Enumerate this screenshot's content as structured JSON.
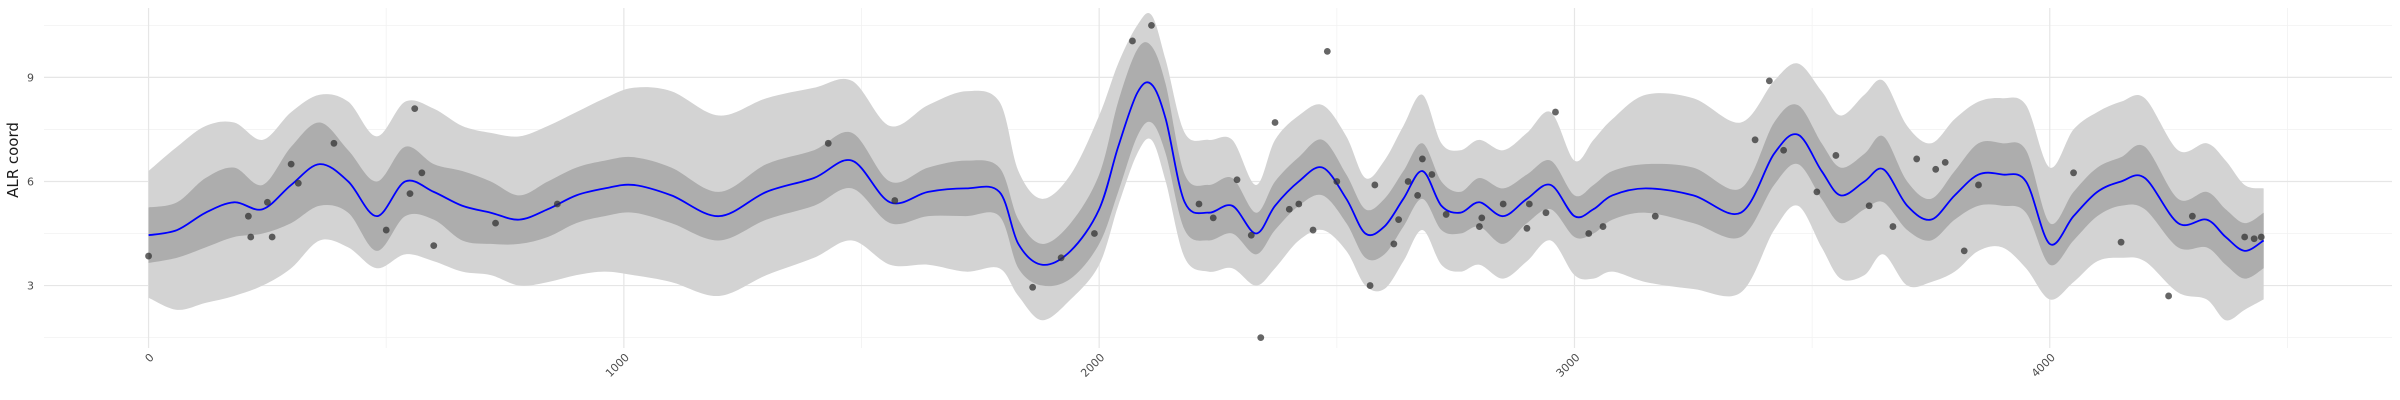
{
  "chart_data": {
    "type": "line",
    "title": "",
    "xlabel": "",
    "ylabel": "ALR coord",
    "xlim": [
      -220,
      4720
    ],
    "ylim": [
      1.2,
      11.0
    ],
    "x_ticks": [
      0,
      1000,
      2000,
      3000,
      4000
    ],
    "x_tick_labels": [
      "0",
      "1000",
      "2000",
      "3000",
      "4000"
    ],
    "x_minor_ticks": [
      500,
      1500,
      2500,
      3500,
      4500
    ],
    "y_ticks": [
      3,
      6,
      9
    ],
    "y_tick_labels": [
      "3",
      "6",
      "9"
    ],
    "y_minor_ticks": [
      1.5,
      4.5,
      7.5,
      10.5
    ],
    "grid": true,
    "legend": "none",
    "colors": {
      "fit_line": "#0000ff",
      "inner_band": "#adadad",
      "outer_band": "#d3d3d3",
      "points": "#333333",
      "background": "#ffffff"
    },
    "series": [
      {
        "type": "line",
        "x": [
          0,
          60,
          120,
          180,
          240,
          300,
          360,
          420,
          480,
          540,
          600,
          660,
          720,
          780,
          840,
          900,
          960,
          1020,
          1100,
          1200,
          1300,
          1400,
          1480,
          1560,
          1640,
          1720,
          1790,
          1830,
          1880,
          1940,
          2000,
          2040,
          2080,
          2110,
          2140,
          2180,
          2230,
          2280,
          2330,
          2370,
          2420,
          2470,
          2520,
          2560,
          2600,
          2640,
          2680,
          2720,
          2760,
          2800,
          2850,
          2900,
          2950,
          3000,
          3040,
          3080,
          3150,
          3250,
          3350,
          3420,
          3470,
          3520,
          3560,
          3610,
          3650,
          3700,
          3750,
          3800,
          3850,
          3900,
          3950,
          4000,
          4050,
          4100,
          4150,
          4200,
          4270,
          4330,
          4370,
          4410,
          4450
        ],
        "y": [
          4.45,
          4.6,
          5.1,
          5.4,
          5.2,
          5.9,
          6.5,
          6.0,
          5.0,
          6.0,
          5.7,
          5.3,
          5.1,
          4.9,
          5.2,
          5.6,
          5.8,
          5.9,
          5.6,
          5.0,
          5.7,
          6.1,
          6.6,
          5.4,
          5.7,
          5.8,
          5.7,
          4.2,
          3.6,
          4.0,
          5.2,
          7.0,
          8.55,
          8.8,
          7.8,
          5.4,
          5.1,
          5.3,
          4.5,
          5.3,
          6.0,
          6.4,
          5.5,
          4.5,
          4.7,
          5.5,
          6.3,
          5.3,
          5.1,
          5.4,
          5.0,
          5.5,
          5.9,
          5.0,
          5.2,
          5.6,
          5.8,
          5.6,
          5.1,
          6.8,
          7.35,
          6.3,
          5.6,
          6.0,
          6.35,
          5.3,
          4.9,
          5.6,
          6.2,
          6.2,
          6.0,
          4.2,
          5.0,
          5.7,
          6.0,
          6.1,
          4.8,
          4.9,
          4.4,
          4.0,
          4.3
        ]
      },
      {
        "type": "band",
        "x": [
          0,
          60,
          120,
          180,
          240,
          300,
          360,
          420,
          480,
          540,
          600,
          660,
          720,
          780,
          840,
          900,
          960,
          1020,
          1100,
          1200,
          1300,
          1400,
          1480,
          1560,
          1640,
          1720,
          1790,
          1830,
          1880,
          1940,
          2000,
          2040,
          2080,
          2110,
          2140,
          2180,
          2230,
          2280,
          2330,
          2370,
          2420,
          2470,
          2520,
          2560,
          2600,
          2640,
          2680,
          2720,
          2760,
          2800,
          2850,
          2900,
          2950,
          3000,
          3040,
          3080,
          3150,
          3250,
          3350,
          3420,
          3470,
          3520,
          3560,
          3610,
          3650,
          3700,
          3750,
          3800,
          3850,
          3900,
          3950,
          4000,
          4050,
          4100,
          4150,
          4200,
          4270,
          4330,
          4370,
          4410,
          4450
        ],
        "lower": [
          3.65,
          3.8,
          4.1,
          4.4,
          4.5,
          4.8,
          5.3,
          5.1,
          4.0,
          5.0,
          4.9,
          4.3,
          4.2,
          4.2,
          4.4,
          4.8,
          5.0,
          5.1,
          4.8,
          4.3,
          4.9,
          5.3,
          5.8,
          4.8,
          5.0,
          5.0,
          5.0,
          3.5,
          3.0,
          3.2,
          4.2,
          5.7,
          7.3,
          7.7,
          6.8,
          4.6,
          4.3,
          4.5,
          3.9,
          4.6,
          5.3,
          5.6,
          4.8,
          3.8,
          3.9,
          4.7,
          5.5,
          4.6,
          4.5,
          4.7,
          4.2,
          4.8,
          5.2,
          4.4,
          4.5,
          4.9,
          5.1,
          4.8,
          4.4,
          5.9,
          6.5,
          5.5,
          4.8,
          5.2,
          5.4,
          4.6,
          4.3,
          4.9,
          5.3,
          5.3,
          5.1,
          3.6,
          4.3,
          5.0,
          5.3,
          5.2,
          4.1,
          4.1,
          3.6,
          3.2,
          3.5
        ],
        "upper": [
          5.25,
          5.4,
          6.1,
          6.4,
          5.9,
          7.0,
          7.7,
          6.9,
          6.0,
          7.0,
          6.5,
          6.3,
          6.0,
          5.6,
          6.0,
          6.4,
          6.6,
          6.7,
          6.4,
          5.7,
          6.5,
          6.9,
          7.4,
          6.0,
          6.4,
          6.6,
          6.4,
          4.9,
          4.2,
          4.8,
          6.2,
          8.3,
          9.8,
          9.9,
          8.8,
          6.2,
          5.9,
          6.1,
          5.1,
          6.0,
          6.7,
          7.2,
          6.2,
          5.2,
          5.5,
          6.3,
          7.1,
          6.0,
          5.7,
          6.1,
          5.8,
          6.2,
          6.6,
          5.6,
          5.9,
          6.3,
          6.5,
          6.4,
          5.8,
          7.7,
          8.2,
          7.1,
          6.4,
          6.8,
          7.3,
          6.0,
          5.5,
          6.3,
          7.1,
          7.1,
          6.9,
          4.8,
          5.7,
          6.4,
          6.7,
          7.0,
          5.5,
          5.7,
          5.2,
          4.8,
          5.1
        ]
      },
      {
        "type": "band",
        "x": [
          0,
          60,
          120,
          180,
          240,
          300,
          360,
          420,
          480,
          540,
          600,
          660,
          720,
          780,
          840,
          900,
          960,
          1020,
          1100,
          1200,
          1300,
          1400,
          1480,
          1560,
          1640,
          1720,
          1790,
          1830,
          1880,
          1940,
          2000,
          2040,
          2080,
          2110,
          2140,
          2180,
          2230,
          2280,
          2330,
          2370,
          2420,
          2470,
          2520,
          2560,
          2600,
          2640,
          2680,
          2720,
          2760,
          2800,
          2850,
          2900,
          2950,
          3000,
          3040,
          3080,
          3150,
          3250,
          3350,
          3420,
          3470,
          3520,
          3560,
          3610,
          3650,
          3700,
          3750,
          3800,
          3850,
          3900,
          3950,
          4000,
          4050,
          4100,
          4150,
          4200,
          4270,
          4330,
          4370,
          4410,
          4450
        ],
        "lower": [
          2.65,
          2.3,
          2.5,
          2.7,
          3.0,
          3.5,
          4.3,
          4.1,
          3.5,
          3.9,
          3.7,
          3.4,
          3.3,
          3.0,
          3.1,
          3.3,
          3.4,
          3.3,
          3.1,
          2.7,
          3.3,
          3.8,
          4.3,
          3.6,
          3.6,
          3.4,
          3.5,
          2.7,
          2.0,
          2.6,
          3.6,
          5.3,
          6.8,
          7.2,
          6.0,
          3.8,
          3.4,
          3.5,
          3.0,
          3.5,
          4.3,
          4.6,
          4.0,
          3.0,
          2.9,
          3.7,
          4.6,
          3.6,
          3.4,
          3.6,
          3.2,
          3.7,
          4.3,
          3.3,
          3.2,
          3.4,
          3.1,
          2.9,
          2.8,
          4.6,
          5.3,
          4.1,
          3.2,
          3.3,
          3.9,
          3.0,
          3.1,
          3.4,
          4.0,
          4.1,
          3.5,
          2.6,
          3.1,
          3.7,
          3.8,
          3.7,
          2.8,
          2.6,
          2.0,
          2.3,
          2.6
        ],
        "upper": [
          6.3,
          7.0,
          7.6,
          7.7,
          7.2,
          8.0,
          8.5,
          8.3,
          7.3,
          8.3,
          8.1,
          7.6,
          7.4,
          7.3,
          7.6,
          8.0,
          8.4,
          8.7,
          8.6,
          7.9,
          8.4,
          8.7,
          8.9,
          7.6,
          8.2,
          8.6,
          8.3,
          6.3,
          5.5,
          6.2,
          7.9,
          9.4,
          10.5,
          10.8,
          9.5,
          7.4,
          7.2,
          7.2,
          5.9,
          7.2,
          7.9,
          8.2,
          7.3,
          6.1,
          6.6,
          7.6,
          8.5,
          7.1,
          6.9,
          7.2,
          6.9,
          7.4,
          8.0,
          6.6,
          7.2,
          7.8,
          8.5,
          8.4,
          7.7,
          8.9,
          9.4,
          8.6,
          7.9,
          8.5,
          8.9,
          7.6,
          7.1,
          7.8,
          8.3,
          8.4,
          8.2,
          6.4,
          7.5,
          8.0,
          8.3,
          8.4,
          6.9,
          7.1,
          6.6,
          5.9,
          5.8
        ]
      },
      {
        "type": "scatter",
        "x": [
          0,
          210,
          215,
          250,
          260,
          300,
          315,
          390,
          500,
          550,
          560,
          575,
          600,
          730,
          860,
          1430,
          1570,
          1860,
          1920,
          1990,
          2070,
          2110,
          2210,
          2240,
          2290,
          2320,
          2340,
          2370,
          2400,
          2420,
          2450,
          2480,
          2500,
          2570,
          2580,
          2620,
          2630,
          2650,
          2670,
          2680,
          2700,
          2730,
          2800,
          2805,
          2850,
          2900,
          2905,
          2940,
          2960,
          3030,
          3060,
          3170,
          3380,
          3410,
          3440,
          3510,
          3550,
          3620,
          3670,
          3720,
          3760,
          3780,
          3820,
          3850,
          4050,
          4150,
          4250,
          4300,
          4410,
          4430,
          4445
        ],
        "y": [
          3.85,
          5.0,
          4.4,
          5.4,
          4.4,
          6.5,
          5.95,
          7.1,
          4.6,
          5.65,
          8.1,
          6.25,
          4.15,
          4.8,
          5.35,
          7.1,
          5.45,
          2.95,
          3.8,
          4.5,
          10.05,
          10.5,
          5.35,
          4.95,
          6.05,
          4.45,
          1.5,
          7.7,
          5.2,
          5.35,
          4.6,
          9.75,
          6.0,
          3.0,
          5.9,
          4.2,
          4.9,
          6.0,
          5.6,
          6.65,
          6.2,
          5.05,
          4.7,
          4.95,
          5.35,
          4.65,
          5.35,
          5.1,
          8.0,
          4.5,
          4.7,
          5.0,
          7.2,
          8.9,
          6.9,
          5.7,
          6.75,
          5.3,
          4.7,
          6.65,
          6.35,
          6.55,
          4.0,
          5.9,
          6.25,
          4.25,
          2.7,
          5.0,
          4.4,
          4.35,
          4.4
        ]
      }
    ]
  }
}
